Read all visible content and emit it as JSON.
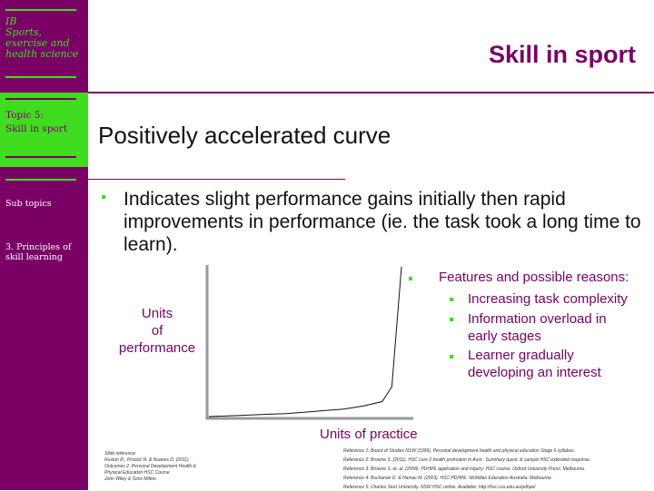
{
  "sidebar": {
    "course": [
      "IB",
      "Sports,",
      "exercise and",
      "health science"
    ],
    "topic": [
      "Topic 5:",
      "Skill in sport"
    ],
    "subtopics_label": "Sub topics",
    "subtopic_item": [
      "3. Principles of",
      "skill learning"
    ]
  },
  "header": {
    "title": "Skill in sport"
  },
  "main": {
    "subtitle": "Positively accelerated curve",
    "bullet": "Indicates slight performance gains initially then rapid improvements in performance (ie. the task took a long time to learn)."
  },
  "chart_data": {
    "type": "line",
    "ylabel": [
      "Units",
      "of",
      "performance"
    ],
    "xlabel": "Units of practice",
    "series": [
      {
        "points": [
          [
            0,
            0
          ],
          [
            0.1,
            0.5
          ],
          [
            0.2,
            1
          ],
          [
            0.3,
            1.5
          ],
          [
            0.4,
            2
          ],
          [
            0.5,
            3
          ],
          [
            0.6,
            4
          ],
          [
            0.7,
            5
          ],
          [
            0.8,
            7
          ],
          [
            0.9,
            10
          ],
          [
            0.95,
            20
          ],
          [
            1,
            100
          ]
        ]
      }
    ]
  },
  "features": {
    "heading": "Features and possible reasons:",
    "items": [
      [
        "Increasing task complexity"
      ],
      [
        "Information overload in",
        "early stages"
      ],
      [
        "Learner gradually",
        "developing an interest"
      ]
    ]
  },
  "references_left": [
    "Slide reference:",
    "Ruxton R., Proctor N. & Nuanes D. (2011).",
    "Outcomes 2: Personal Development Health &",
    "Physical Education HSC Course",
    "John Wiley & Sons Milton."
  ],
  "references_right": [
    "Reference 1: Board of Studies NSW (1999). Personal development health and physical education Stage 6 syllabus.",
    "Reference 2: Browne S. (2011). HSC core 2 health promotion in Aust.: Summary quest. & sample HSC extended response.",
    "Reference 3: Browne S. et. al. (2008). PDHPE application and inquiry: HSC course. Oxford University Press: Melbourne.",
    "Reference 4: Buchanan D. & Hamac M. (2003). HSC PDHPE. McMillan Education Australia: Melbourne.",
    "Reference 5: Charles Sturt University. NSW HSC online. Available: http://hsc.csu.edu.au/pdhpe/"
  ]
}
